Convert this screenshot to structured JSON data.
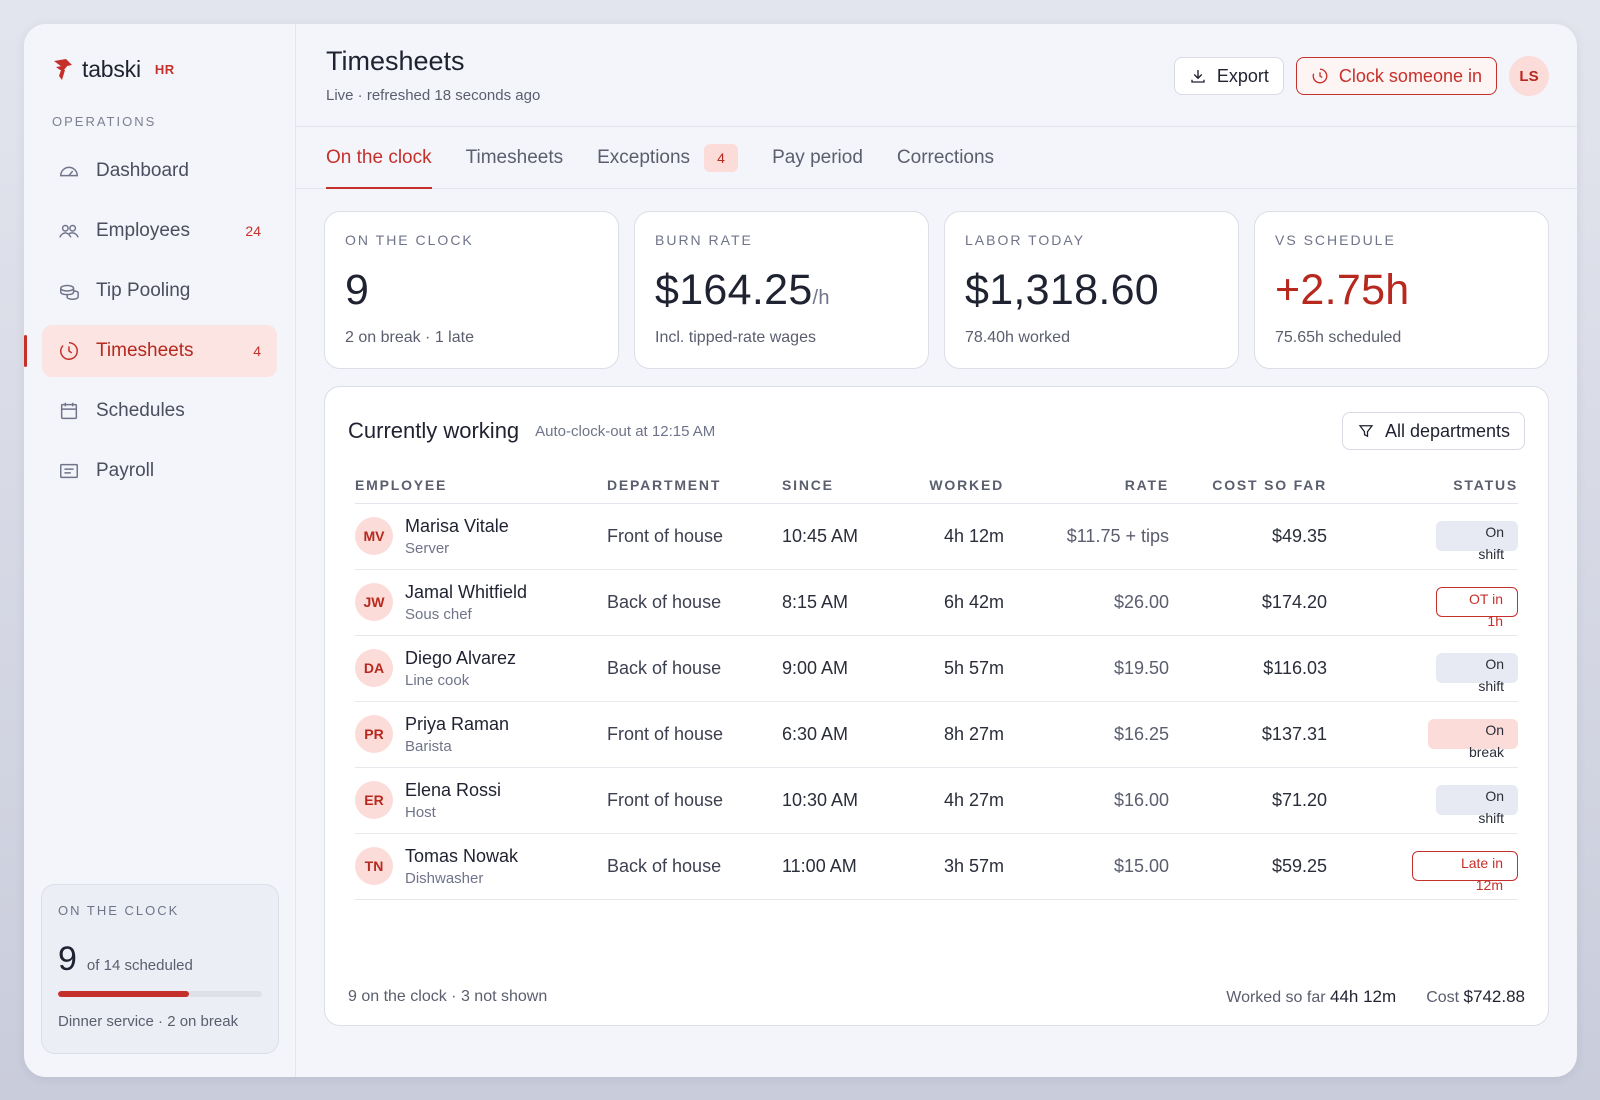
{
  "brand": {
    "name": "tabski",
    "tag": "HR"
  },
  "sidebar": {
    "section": "OPERATIONS",
    "items": [
      {
        "label": "Dashboard",
        "icon": "gauge-icon",
        "count": ""
      },
      {
        "label": "Employees",
        "icon": "users-icon",
        "count": "24"
      },
      {
        "label": "Tip Pooling",
        "icon": "coins-icon",
        "count": ""
      },
      {
        "label": "Timesheets",
        "icon": "clock-icon",
        "count": "4",
        "active": true
      },
      {
        "label": "Schedules",
        "icon": "calendar-icon",
        "count": ""
      },
      {
        "label": "Payroll",
        "icon": "receipt-icon",
        "count": ""
      }
    ],
    "clock_card": {
      "label": "ON THE CLOCK",
      "count": "9",
      "of": "of 14 scheduled",
      "progress_fraction": 0.643,
      "foot": "Dinner service · 2 on break"
    }
  },
  "header": {
    "title": "Timesheets",
    "subtitle": "Live · refreshed 18 seconds ago",
    "export_label": "Export",
    "clock_in_label": "Clock someone in",
    "avatar": "LS"
  },
  "tabs": [
    {
      "label": "On the clock",
      "active": true,
      "badge": ""
    },
    {
      "label": "Timesheets",
      "badge": ""
    },
    {
      "label": "Exceptions",
      "badge": "4"
    },
    {
      "label": "Pay period",
      "badge": ""
    },
    {
      "label": "Corrections",
      "badge": ""
    }
  ],
  "stats": [
    {
      "label": "ON THE CLOCK",
      "value": "9",
      "unit": "",
      "sub": "2 on break · 1 late"
    },
    {
      "label": "BURN RATE",
      "value": "$164.25",
      "unit": "/h",
      "sub": "Incl. tipped-rate wages"
    },
    {
      "label": "LABOR TODAY",
      "value": "$1,318.60",
      "unit": "",
      "sub": "78.40h worked"
    },
    {
      "label": "VS SCHEDULE",
      "value": "+2.75h",
      "unit": "",
      "sub": "75.65h scheduled"
    }
  ],
  "panel": {
    "title": "Currently working",
    "note": "Auto-clock-out at 12:15 AM",
    "filter_label": "All departments",
    "columns": [
      "EMPLOYEE",
      "DEPARTMENT",
      "SINCE",
      "WORKED",
      "RATE",
      "COST SO FAR",
      "STATUS"
    ],
    "rows": [
      {
        "initials": "MV",
        "name": "Marisa Vitale",
        "role": "Server",
        "dept": "Front of house",
        "since": "10:45 AM",
        "worked": "4h 12m",
        "rate": "$11.75 + tips",
        "cost": "$49.35",
        "status1": "On",
        "status2": "shift",
        "kind": "shift"
      },
      {
        "initials": "JW",
        "name": "Jamal Whitfield",
        "role": "Sous chef",
        "dept": "Back of house",
        "since": "8:15 AM",
        "worked": "6h 42m",
        "rate": "$26.00",
        "cost": "$174.20",
        "status1": "OT in",
        "status2": "1h",
        "kind": "ot"
      },
      {
        "initials": "DA",
        "name": "Diego Alvarez",
        "role": "Line cook",
        "dept": "Back of house",
        "since": "9:00 AM",
        "worked": "5h 57m",
        "rate": "$19.50",
        "cost": "$116.03",
        "status1": "On",
        "status2": "shift",
        "kind": "shift"
      },
      {
        "initials": "PR",
        "name": "Priya Raman",
        "role": "Barista",
        "dept": "Front of house",
        "since": "6:30 AM",
        "worked": "8h 27m",
        "rate": "$16.25",
        "cost": "$137.31",
        "status1": "On",
        "status2": "break",
        "kind": "break"
      },
      {
        "initials": "ER",
        "name": "Elena Rossi",
        "role": "Host",
        "dept": "Front of house",
        "since": "10:30 AM",
        "worked": "4h 27m",
        "rate": "$16.00",
        "cost": "$71.20",
        "status1": "On",
        "status2": "shift",
        "kind": "shift"
      },
      {
        "initials": "TN",
        "name": "Tomas Nowak",
        "role": "Dishwasher",
        "dept": "Back of house",
        "since": "11:00 AM",
        "worked": "3h 57m",
        "rate": "$15.00",
        "cost": "$59.25",
        "status1": "Late in",
        "status2": "12m",
        "kind": "late"
      }
    ],
    "footer": {
      "left": "9 on the clock · 3 not shown",
      "worked_label": "Worked so far",
      "worked_value": "44h 12m",
      "cost_label": "Cost",
      "cost_value": "$742.88"
    }
  },
  "colors": {
    "accent": "#c6302b",
    "accent_soft": "#fbdcd8",
    "neutral_pill": "#e8eaf3"
  }
}
